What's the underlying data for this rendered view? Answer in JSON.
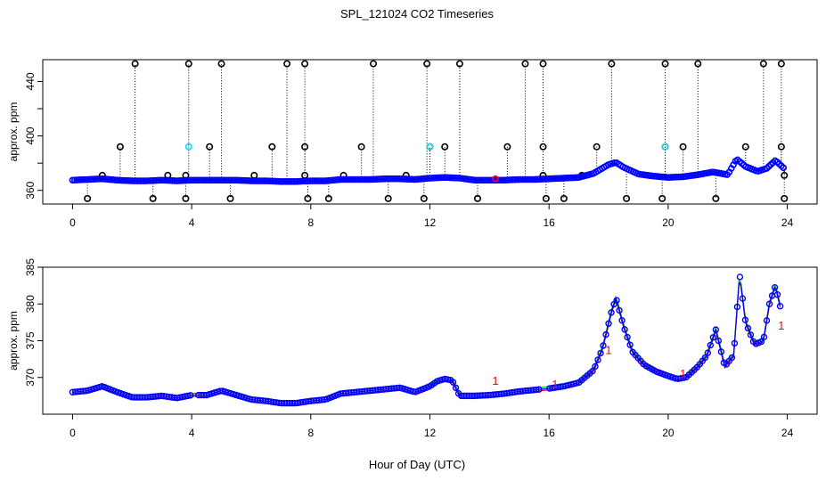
{
  "chart_data": [
    {
      "type": "scatter",
      "title": "SPL_121024  CO2 Timeseries",
      "xlabel": "Hour of Day (UTC)",
      "ylabel": "approx. ppm",
      "xlim": [
        -1,
        25
      ],
      "ylim": [
        350,
        456
      ],
      "xticks": [
        0,
        4,
        8,
        12,
        16,
        20,
        24
      ],
      "yticks": [
        360,
        400,
        440
      ],
      "yticks_minor": [
        380,
        420
      ],
      "series": [
        {
          "name": "co2",
          "x": [
            0,
            0.5,
            1,
            1.5,
            2,
            2.5,
            3,
            3.5,
            4,
            4.5,
            5,
            5.5,
            6,
            6.5,
            7,
            7.5,
            8,
            8.5,
            9,
            9.5,
            10,
            10.5,
            11,
            11.5,
            12,
            12.5,
            13,
            13.5,
            14,
            14.5,
            15,
            15.5,
            16,
            16.5,
            17,
            17.5,
            18,
            18.25,
            18.5,
            19,
            19.5,
            20,
            20.5,
            21,
            21.5,
            22,
            22.3,
            22.6,
            23,
            23.3,
            23.6,
            23.9
          ],
          "y": [
            367.5,
            368,
            368.5,
            367.5,
            367,
            367,
            367.5,
            367,
            367.5,
            367.5,
            367.5,
            367.5,
            367,
            367,
            366.5,
            366.5,
            367,
            367,
            368,
            368,
            368,
            368.5,
            368.5,
            368,
            369,
            369.5,
            369,
            367.5,
            367.5,
            367.5,
            368,
            368,
            368.5,
            369,
            369.5,
            372.5,
            379,
            380.5,
            377,
            372,
            370.5,
            369.5,
            370,
            371.5,
            373.5,
            371.5,
            383,
            377.5,
            374,
            376,
            382,
            376
          ]
        }
      ],
      "outlier_spikes": {
        "top_x": [
          2.1,
          3.9,
          5.0,
          7.2,
          7.8,
          10.1,
          11.9,
          13.0,
          15.2,
          15.8,
          18.1,
          19.9,
          21.0,
          23.2,
          23.8
        ],
        "top_y": 453,
        "bottom_x": [
          0.5,
          2.7,
          3.8,
          5.3,
          7.9,
          8.6,
          10.6,
          11.8,
          13.6,
          15.9,
          16.5,
          18.6,
          19.8,
          21.6,
          23.9
        ],
        "bottom_y": 354,
        "mid_x": [
          1.6,
          4.6,
          6.7,
          7.8,
          9.7,
          12.0,
          12.5,
          14.6,
          15.8,
          17.6,
          19.9,
          20.5,
          22.6,
          23.8
        ],
        "mid_y": 392,
        "low_x": [
          1.0,
          3.2,
          3.8,
          6.1,
          7.8,
          9.1,
          11.2,
          15.8,
          17.1,
          23.9
        ],
        "low_y": 371
      }
    },
    {
      "type": "scatter",
      "title": "",
      "xlabel": "Hour of Day (UTC)",
      "ylabel": "approx. ppm",
      "xlim": [
        -1,
        25
      ],
      "ylim": [
        365,
        385
      ],
      "xticks": [
        0,
        4,
        8,
        12,
        16,
        20,
        24
      ],
      "yticks": [
        370,
        375,
        380,
        385
      ],
      "series": [
        {
          "name": "co2",
          "x": [
            0,
            0.5,
            1,
            1.5,
            2,
            2.5,
            3,
            3.5,
            4,
            4.5,
            5,
            5.5,
            6,
            6.5,
            7,
            7.5,
            8,
            8.5,
            9,
            9.5,
            10,
            10.5,
            11,
            11.5,
            12,
            12.25,
            12.5,
            12.75,
            13,
            13.5,
            14,
            14.5,
            15,
            15.5,
            16,
            16.5,
            17,
            17.5,
            17.8,
            18.1,
            18.25,
            18.5,
            18.8,
            19.2,
            19.6,
            20,
            20.3,
            20.6,
            21,
            21.3,
            21.6,
            21.9,
            22.2,
            22.4,
            22.6,
            22.9,
            23.2,
            23.4,
            23.6,
            23.8
          ],
          "y": [
            368,
            368.2,
            368.8,
            368,
            367.3,
            367.3,
            367.5,
            367.2,
            367.6,
            367.6,
            368.2,
            367.6,
            367,
            366.8,
            366.5,
            366.5,
            366.8,
            367,
            367.8,
            368,
            368.2,
            368.4,
            368.6,
            368,
            368.8,
            369.5,
            369.8,
            369.6,
            367.5,
            367.5,
            367.6,
            367.8,
            368.1,
            368.3,
            368.5,
            368.8,
            369.3,
            371,
            374,
            379,
            380.8,
            377,
            373.5,
            371.7,
            370.8,
            370.2,
            369.8,
            370,
            371.5,
            373,
            376.5,
            371.5,
            373,
            384,
            377.5,
            374.5,
            375,
            380,
            382.5,
            379
          ]
        }
      ],
      "annotations": {
        "glyph": "1",
        "x": [
          14.2,
          16.2,
          18.0,
          20.5,
          23.8
        ],
        "y": [
          369,
          368.5,
          373.2,
          370,
          376.5
        ]
      }
    }
  ],
  "colors": {
    "points": "#0000ff",
    "line": "#0000ff",
    "outer": "#00c000",
    "red": "#ff0000",
    "cyan": "#00e0ff",
    "axis": "#000000"
  }
}
